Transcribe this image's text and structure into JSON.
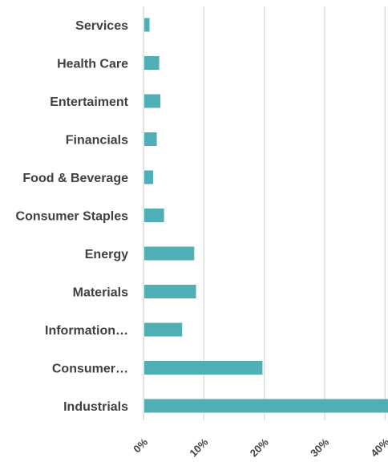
{
  "chart_data": {
    "type": "bar",
    "orientation": "horizontal",
    "categories": [
      "Services",
      "Health Care",
      "Entertaiment",
      "Financials",
      "Food & Beverage",
      "Consumer Staples",
      "Energy",
      "Materials",
      "Information…",
      "Consumer…",
      "Industrials"
    ],
    "values": [
      1.0,
      2.6,
      2.8,
      2.2,
      1.6,
      3.4,
      8.4,
      8.7,
      6.4,
      19.7,
      40.5
    ],
    "value_unit": "%",
    "xlim": [
      0,
      40
    ],
    "x_ticks": [
      "0%",
      "10%",
      "20%",
      "30%",
      "40%"
    ],
    "grid": true,
    "legend": "none",
    "bar_color": "#4FAFB5",
    "grid_color": "#D9D9D9",
    "label_color": "#404040"
  }
}
